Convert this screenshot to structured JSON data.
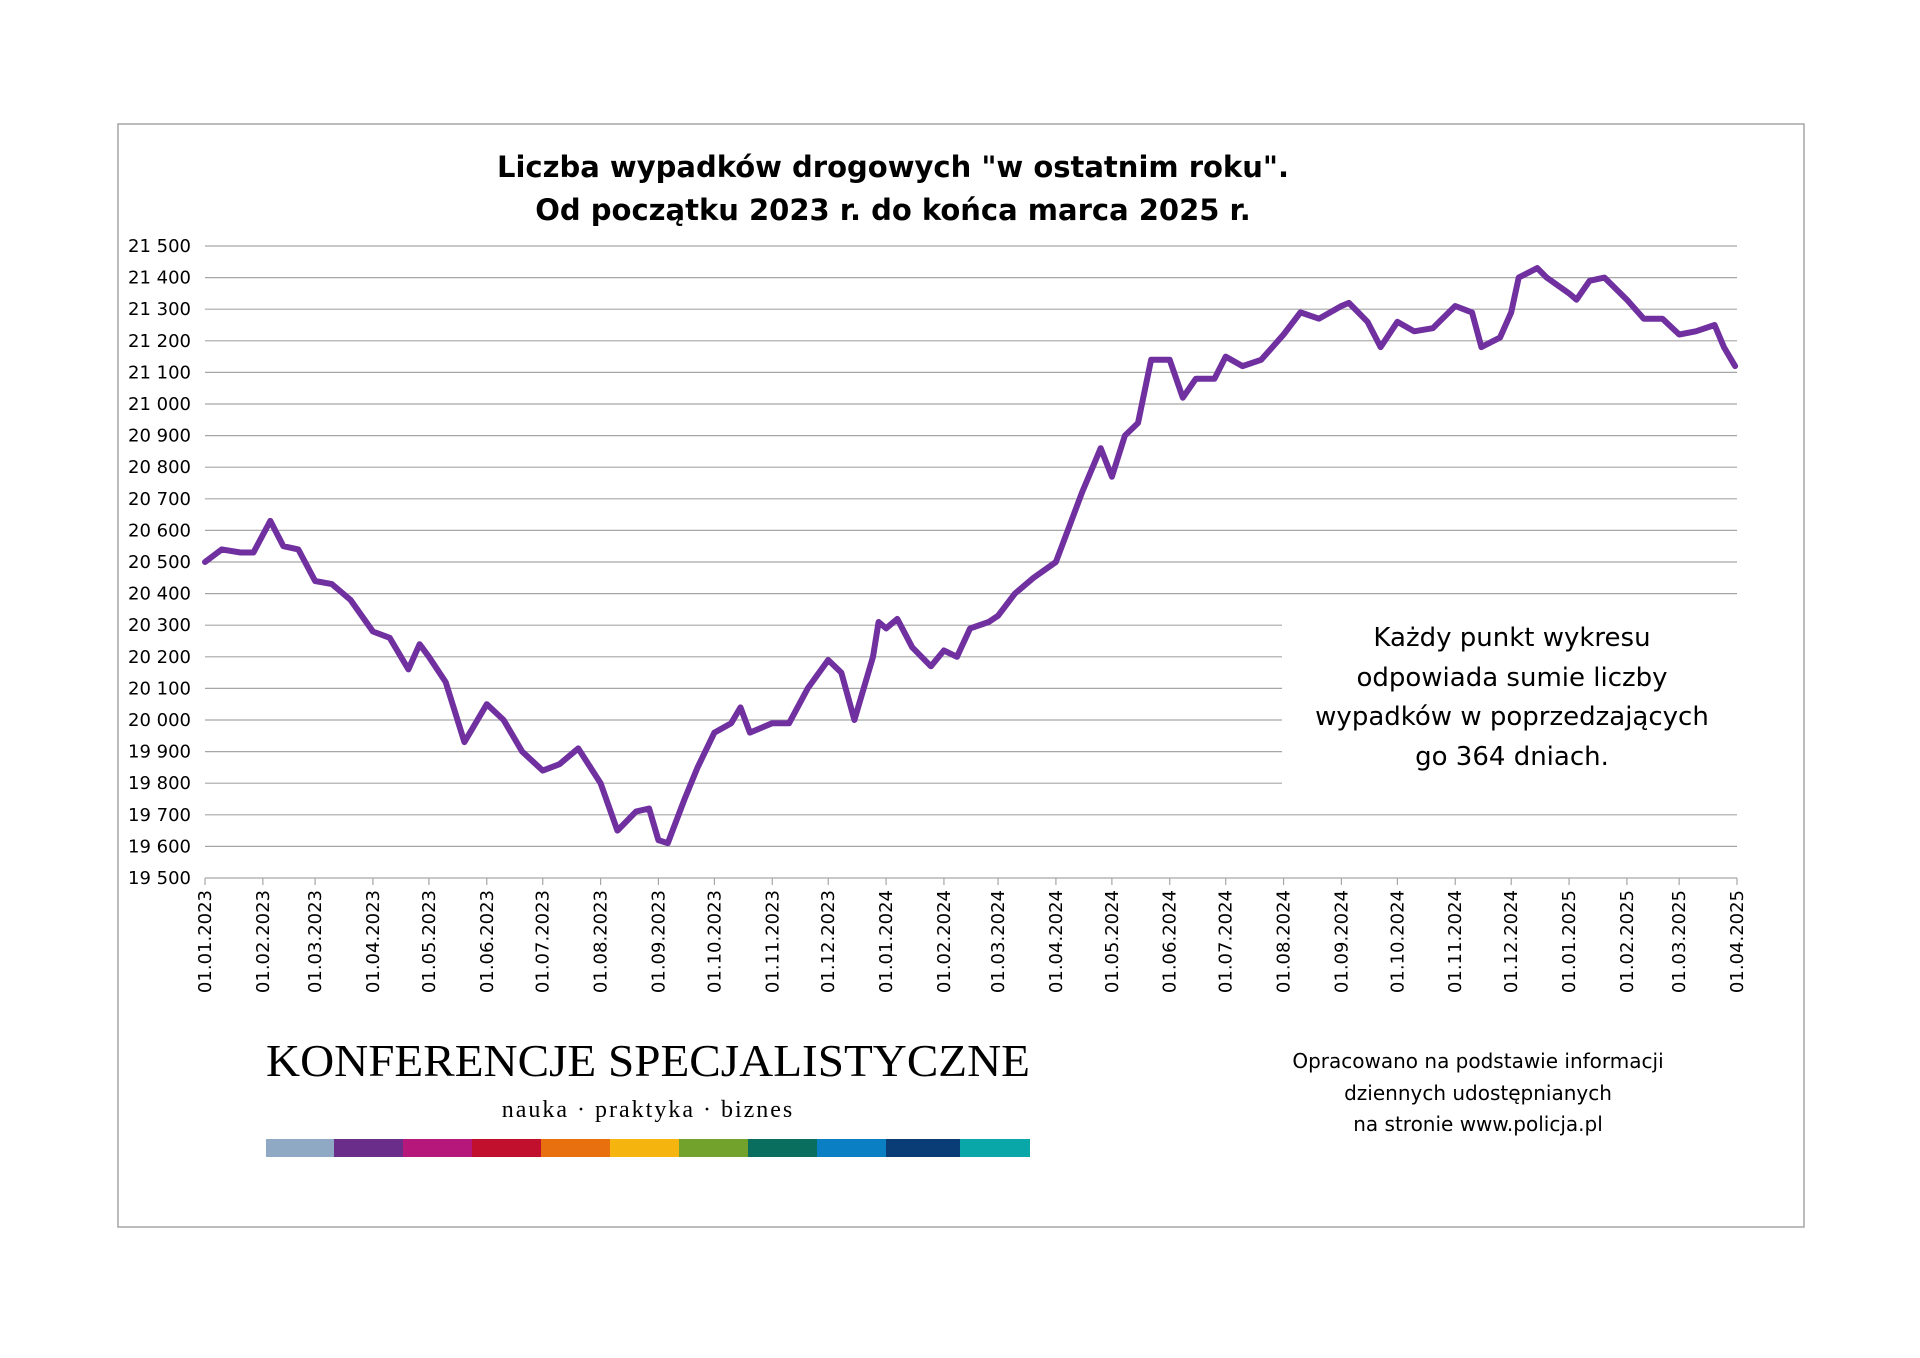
{
  "chart_data": {
    "type": "line",
    "title": [
      "Liczba wypadków drogowych \"w ostatnim roku\".",
      "Od początku 2023 r. do końca marca 2025 r."
    ],
    "annotation": [
      "Każdy punkt wykresu",
      "odpowiada sumie liczby",
      "wypadków w poprzedzających",
      "go 364 dniach."
    ],
    "source": [
      "Opracowano na podstawie informacji",
      "dziennych udostępnianych",
      "na stronie www.policja.pl"
    ],
    "logo": {
      "name": "KONFERENCJE SPECJALISTYCZNE",
      "tagline": "nauka · praktyka · biznes"
    },
    "grid": true,
    "color": "#7030a0",
    "xlim": [
      "01.01.2023",
      "01.04.2025"
    ],
    "xticks": [
      "01.01.2023",
      "01.02.2023",
      "01.03.2023",
      "01.04.2023",
      "01.05.2023",
      "01.06.2023",
      "01.07.2023",
      "01.08.2023",
      "01.09.2023",
      "01.10.2023",
      "01.11.2023",
      "01.12.2023",
      "01.01.2024",
      "01.02.2024",
      "01.03.2024",
      "01.04.2024",
      "01.05.2024",
      "01.06.2024",
      "01.07.2024",
      "01.08.2024",
      "01.09.2024",
      "01.10.2024",
      "01.11.2024",
      "01.12.2024",
      "01.01.2025",
      "01.02.2025",
      "01.03.2025",
      "01.04.2025"
    ],
    "ylim": [
      19500,
      21500
    ],
    "yticks": [
      {
        "value": 19500,
        "label": "19 500"
      },
      {
        "value": 19600,
        "label": "19 600"
      },
      {
        "value": 19700,
        "label": "19 700"
      },
      {
        "value": 19800,
        "label": "19 800"
      },
      {
        "value": 19900,
        "label": "19 900"
      },
      {
        "value": 20000,
        "label": "20 000"
      },
      {
        "value": 20100,
        "label": "20 100"
      },
      {
        "value": 20200,
        "label": "20 200"
      },
      {
        "value": 20300,
        "label": "20 300"
      },
      {
        "value": 20400,
        "label": "20 400"
      },
      {
        "value": 20500,
        "label": "20 500"
      },
      {
        "value": 20600,
        "label": "20 600"
      },
      {
        "value": 20700,
        "label": "20 700"
      },
      {
        "value": 20800,
        "label": "20 800"
      },
      {
        "value": 20900,
        "label": "20 900"
      },
      {
        "value": 21000,
        "label": "21 000"
      },
      {
        "value": 21100,
        "label": "21 100"
      },
      {
        "value": 21200,
        "label": "21 200"
      },
      {
        "value": 21300,
        "label": "21 300"
      },
      {
        "value": 21400,
        "label": "21 400"
      },
      {
        "value": 21500,
        "label": "21 500"
      }
    ],
    "x": [
      "01.01.2023",
      "10.01.2023",
      "20.01.2023",
      "27.01.2023",
      "05.02.2023",
      "12.02.2023",
      "20.02.2023",
      "01.03.2023",
      "10.03.2023",
      "20.03.2023",
      "01.04.2023",
      "10.04.2023",
      "20.04.2023",
      "26.04.2023",
      "01.05.2023",
      "10.05.2023",
      "20.05.2023",
      "01.06.2023",
      "10.06.2023",
      "20.06.2023",
      "01.07.2023",
      "10.07.2023",
      "20.07.2023",
      "01.08.2023",
      "10.08.2023",
      "20.08.2023",
      "27.08.2023",
      "01.09.2023",
      "06.09.2023",
      "15.09.2023",
      "22.09.2023",
      "01.10.2023",
      "10.10.2023",
      "15.10.2023",
      "20.10.2023",
      "01.11.2023",
      "10.11.2023",
      "20.11.2023",
      "01.12.2023",
      "08.12.2023",
      "15.12.2023",
      "25.12.2023",
      "28.12.2023",
      "01.01.2024",
      "07.01.2024",
      "15.01.2024",
      "25.01.2024",
      "01.02.2024",
      "08.02.2024",
      "15.02.2024",
      "25.02.2024",
      "01.03.2024",
      "10.03.2024",
      "20.03.2024",
      "01.04.2024",
      "08.04.2024",
      "15.04.2024",
      "25.04.2024",
      "01.05.2024",
      "08.05.2024",
      "15.05.2024",
      "22.05.2024",
      "01.06.2024",
      "08.06.2024",
      "15.06.2024",
      "25.06.2024",
      "01.07.2024",
      "10.07.2024",
      "20.07.2024",
      "01.08.2024",
      "10.08.2024",
      "20.08.2024",
      "01.09.2024",
      "05.09.2024",
      "15.09.2024",
      "22.09.2024",
      "01.10.2024",
      "10.10.2024",
      "20.10.2024",
      "01.11.2024",
      "10.11.2024",
      "15.11.2024",
      "25.11.2024",
      "01.12.2024",
      "05.12.2024",
      "15.12.2024",
      "20.12.2024",
      "01.01.2025",
      "05.01.2025",
      "12.01.2025",
      "20.01.2025",
      "01.02.2025",
      "10.02.2025",
      "20.02.2025",
      "01.03.2025",
      "10.03.2025",
      "20.03.2025",
      "25.03.2025",
      "31.03.2025"
    ],
    "values": [
      20500,
      20540,
      20530,
      20530,
      20630,
      20550,
      20540,
      20440,
      20430,
      20380,
      20280,
      20260,
      20160,
      20240,
      20200,
      20120,
      19930,
      20050,
      20000,
      19900,
      19840,
      19860,
      19910,
      19800,
      19650,
      19710,
      19720,
      19620,
      19610,
      19750,
      19850,
      19960,
      19990,
      20040,
      19960,
      19990,
      19990,
      20100,
      20190,
      20150,
      20000,
      20200,
      20310,
      20290,
      20320,
      20230,
      20170,
      20220,
      20200,
      20290,
      20310,
      20330,
      20400,
      20450,
      20500,
      20610,
      20720,
      20860,
      20770,
      20900,
      20940,
      21140,
      21140,
      21020,
      21080,
      21080,
      21150,
      21120,
      21140,
      21220,
      21290,
      21270,
      21310,
      21320,
      21260,
      21180,
      21260,
      21230,
      21240,
      21310,
      21290,
      21180,
      21210,
      21290,
      21400,
      21430,
      21400,
      21350,
      21330,
      21390,
      21400,
      21330,
      21270,
      21270,
      21220,
      21230,
      21250,
      21180,
      21120
    ]
  }
}
